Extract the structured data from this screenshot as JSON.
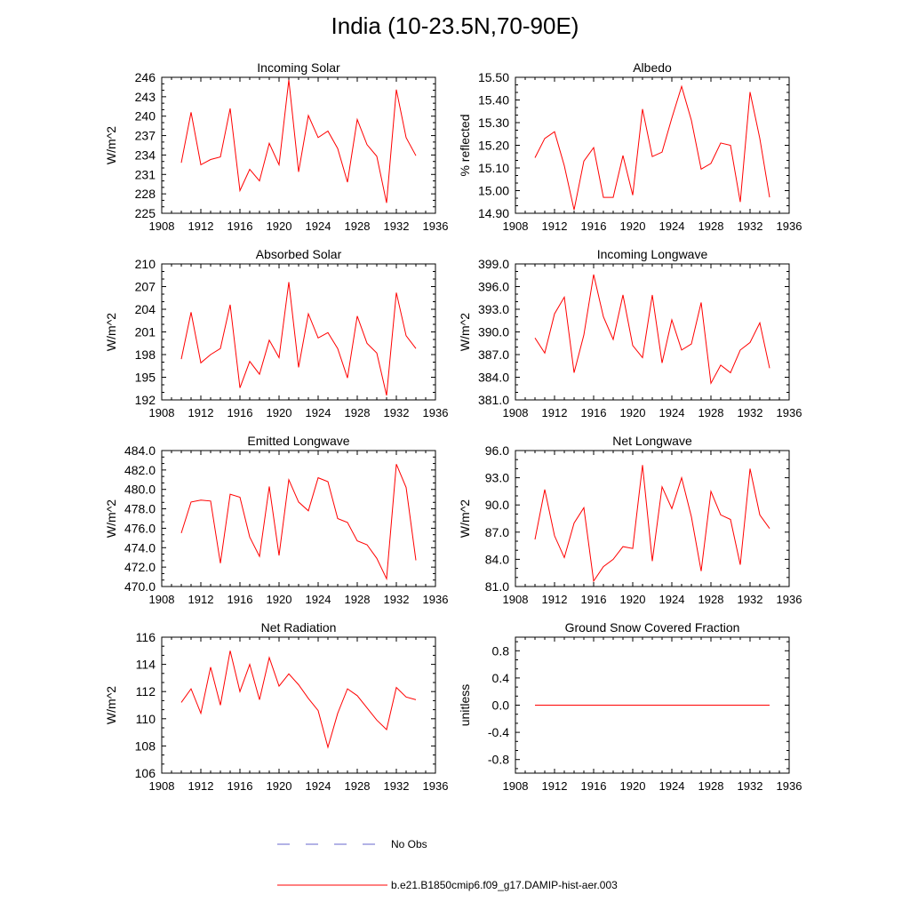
{
  "title": "India (10-23.5N,70-90E)",
  "legend": {
    "no_obs_label": "No Obs",
    "model_label": "b.e21.B1850cmip6.f09_g17.DAMIP-hist-aer.003",
    "model_color": "#ff0000",
    "obs_color": "#6666cc"
  },
  "chart_data": [
    {
      "type": "line",
      "title": "Incoming Solar",
      "ylabel": "W/m^2",
      "xlim": [
        1908,
        1936
      ],
      "xticks": [
        1908,
        1912,
        1916,
        1920,
        1924,
        1928,
        1932,
        1936
      ],
      "ylim": [
        225,
        246
      ],
      "yticks": [
        "225",
        "228",
        "231",
        "234",
        "237",
        "240",
        "243",
        "246"
      ],
      "color": "#ff0000",
      "x": [
        1910,
        1911,
        1912,
        1913,
        1914,
        1915,
        1916,
        1917,
        1918,
        1919,
        1920,
        1921,
        1922,
        1923,
        1924,
        1925,
        1926,
        1927,
        1928,
        1929,
        1930,
        1931,
        1932,
        1933,
        1934
      ],
      "values": [
        232.8,
        240.6,
        232.5,
        233.3,
        233.7,
        241.2,
        228.5,
        231.8,
        230.0,
        235.8,
        232.5,
        245.6,
        231.4,
        240.1,
        236.7,
        237.7,
        235.0,
        229.8,
        239.5,
        235.6,
        233.8,
        226.6,
        244.1,
        236.7,
        233.9
      ]
    },
    {
      "type": "line",
      "title": "Albedo",
      "ylabel": "% reflected",
      "xlim": [
        1908,
        1936
      ],
      "xticks": [
        1908,
        1912,
        1916,
        1920,
        1924,
        1928,
        1932,
        1936
      ],
      "ylim": [
        14.9,
        15.5
      ],
      "yticks": [
        "14.90",
        "15.00",
        "15.10",
        "15.20",
        "15.30",
        "15.40",
        "15.50"
      ],
      "color": "#ff0000",
      "x": [
        1910,
        1911,
        1912,
        1913,
        1914,
        1915,
        1916,
        1917,
        1918,
        1919,
        1920,
        1921,
        1922,
        1923,
        1924,
        1925,
        1926,
        1927,
        1928,
        1929,
        1930,
        1931,
        1932,
        1933,
        1934
      ],
      "values": [
        15.145,
        15.23,
        15.26,
        15.11,
        14.915,
        15.13,
        15.19,
        14.97,
        14.97,
        15.155,
        14.98,
        15.36,
        15.15,
        15.17,
        15.32,
        15.46,
        15.31,
        15.095,
        15.12,
        15.21,
        15.2,
        14.95,
        15.435,
        15.23,
        14.97
      ]
    },
    {
      "type": "line",
      "title": "Absorbed Solar",
      "ylabel": "W/m^2",
      "xlim": [
        1908,
        1936
      ],
      "xticks": [
        1908,
        1912,
        1916,
        1920,
        1924,
        1928,
        1932,
        1936
      ],
      "ylim": [
        192,
        210
      ],
      "yticks": [
        "192",
        "195",
        "198",
        "201",
        "204",
        "207",
        "210"
      ],
      "color": "#ff0000",
      "x": [
        1910,
        1911,
        1912,
        1913,
        1914,
        1915,
        1916,
        1917,
        1918,
        1919,
        1920,
        1921,
        1922,
        1923,
        1924,
        1925,
        1926,
        1927,
        1928,
        1929,
        1930,
        1931,
        1932,
        1933,
        1934
      ],
      "values": [
        197.4,
        203.6,
        196.9,
        198.0,
        198.8,
        204.6,
        193.6,
        197.1,
        195.4,
        199.9,
        197.6,
        207.6,
        196.3,
        203.4,
        200.2,
        200.9,
        198.8,
        194.9,
        203.1,
        199.5,
        198.2,
        192.6,
        206.2,
        200.5,
        198.8
      ]
    },
    {
      "type": "line",
      "title": "Incoming Longwave",
      "ylabel": "W/m^2",
      "xlim": [
        1908,
        1936
      ],
      "xticks": [
        1908,
        1912,
        1916,
        1920,
        1924,
        1928,
        1932,
        1936
      ],
      "ylim": [
        381,
        399
      ],
      "yticks": [
        "381.0",
        "384.0",
        "387.0",
        "390.0",
        "393.0",
        "396.0",
        "399.0"
      ],
      "color": "#ff0000",
      "x": [
        1910,
        1911,
        1912,
        1913,
        1914,
        1915,
        1916,
        1917,
        1918,
        1919,
        1920,
        1921,
        1922,
        1923,
        1924,
        1925,
        1926,
        1927,
        1928,
        1929,
        1930,
        1931,
        1932,
        1933,
        1934
      ],
      "values": [
        389.2,
        387.2,
        392.4,
        394.6,
        384.6,
        389.6,
        397.6,
        392.0,
        389.0,
        394.9,
        388.2,
        386.6,
        394.9,
        385.9,
        391.6,
        387.6,
        388.4,
        393.9,
        383.2,
        385.6,
        384.6,
        387.6,
        388.6,
        391.2,
        385.2
      ]
    },
    {
      "type": "line",
      "title": "Emitted Longwave",
      "ylabel": "W/m^2",
      "xlim": [
        1908,
        1936
      ],
      "xticks": [
        1908,
        1912,
        1916,
        1920,
        1924,
        1928,
        1932,
        1936
      ],
      "ylim": [
        470,
        484
      ],
      "yticks": [
        "470.0",
        "472.0",
        "474.0",
        "476.0",
        "478.0",
        "480.0",
        "482.0",
        "484.0"
      ],
      "color": "#ff0000",
      "x": [
        1910,
        1911,
        1912,
        1913,
        1914,
        1915,
        1916,
        1917,
        1918,
        1919,
        1920,
        1921,
        1922,
        1923,
        1924,
        1925,
        1926,
        1927,
        1928,
        1929,
        1930,
        1931,
        1932,
        1933,
        1934
      ],
      "values": [
        475.5,
        478.7,
        478.9,
        478.8,
        472.4,
        479.5,
        479.2,
        475.1,
        473.1,
        480.3,
        473.2,
        481.0,
        478.7,
        477.8,
        481.2,
        480.8,
        477.0,
        476.6,
        474.7,
        474.3,
        472.9,
        470.8,
        482.6,
        480.2,
        472.7
      ]
    },
    {
      "type": "line",
      "title": "Net Longwave",
      "ylabel": "W/m^2",
      "xlim": [
        1908,
        1936
      ],
      "xticks": [
        1908,
        1912,
        1916,
        1920,
        1924,
        1928,
        1932,
        1936
      ],
      "ylim": [
        81,
        96
      ],
      "yticks": [
        "81.0",
        "84.0",
        "87.0",
        "90.0",
        "93.0",
        "96.0"
      ],
      "color": "#ff0000",
      "x": [
        1910,
        1911,
        1912,
        1913,
        1914,
        1915,
        1916,
        1917,
        1918,
        1919,
        1920,
        1921,
        1922,
        1923,
        1924,
        1925,
        1926,
        1927,
        1928,
        1929,
        1930,
        1931,
        1932,
        1933,
        1934
      ],
      "values": [
        86.2,
        91.7,
        86.6,
        84.2,
        88.0,
        89.7,
        81.6,
        83.2,
        84.0,
        85.4,
        85.2,
        94.4,
        83.8,
        92.0,
        89.6,
        93.0,
        88.7,
        82.7,
        91.5,
        88.9,
        88.4,
        83.4,
        94.0,
        88.9,
        87.4
      ]
    },
    {
      "type": "line",
      "title": "Net Radiation",
      "ylabel": "W/m^2",
      "xlim": [
        1908,
        1936
      ],
      "xticks": [
        1908,
        1912,
        1916,
        1920,
        1924,
        1928,
        1932,
        1936
      ],
      "ylim": [
        106,
        116
      ],
      "yticks": [
        "106",
        "108",
        "110",
        "112",
        "114",
        "116"
      ],
      "color": "#ff0000",
      "x": [
        1910,
        1911,
        1912,
        1913,
        1914,
        1915,
        1916,
        1917,
        1918,
        1919,
        1920,
        1921,
        1922,
        1923,
        1924,
        1925,
        1926,
        1927,
        1928,
        1929,
        1930,
        1931,
        1932,
        1933,
        1934
      ],
      "values": [
        111.2,
        112.2,
        110.4,
        113.8,
        111.0,
        115.0,
        112.0,
        114.0,
        111.4,
        114.5,
        112.4,
        113.3,
        112.5,
        111.5,
        110.6,
        107.9,
        110.4,
        112.2,
        111.7,
        110.8,
        109.9,
        109.2,
        112.3,
        111.6,
        111.4
      ]
    },
    {
      "type": "line",
      "title": "Ground Snow Covered Fraction",
      "ylabel": "unitless",
      "xlim": [
        1908,
        1936
      ],
      "xticks": [
        1908,
        1912,
        1916,
        1920,
        1924,
        1928,
        1932,
        1936
      ],
      "ylim": [
        -1.0,
        1.0
      ],
      "yticks": [
        "-0.8",
        "-0.4",
        "0.0",
        "0.4",
        "0.8"
      ],
      "color": "#ff0000",
      "x": [
        1910,
        1934
      ],
      "values": [
        0,
        0
      ]
    }
  ]
}
